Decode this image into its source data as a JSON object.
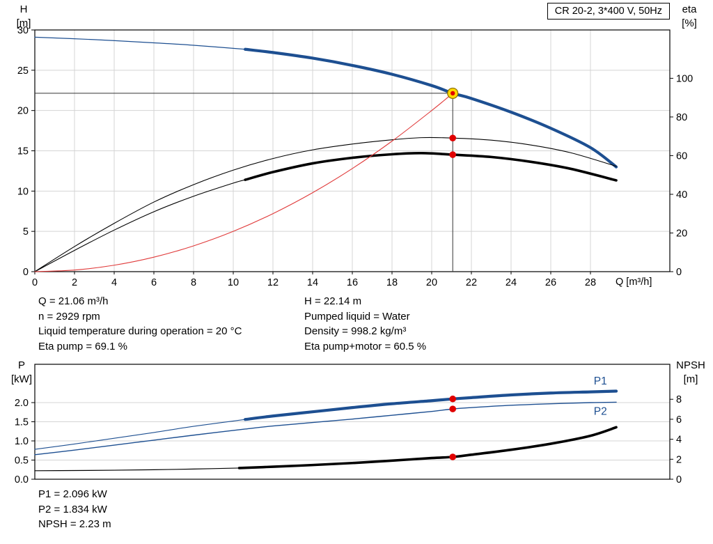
{
  "title_box": {
    "label": "CR 20-2, 3*400 V, 50Hz"
  },
  "axes_labels": {
    "head_1": "H",
    "head_2": "[m]",
    "eta_1": "eta",
    "eta_2": "[%]",
    "flow_unit": "Q [m³/h]",
    "power_1": "P",
    "power_2": "[kW]",
    "npsh_1": "NPSH",
    "npsh_2": "[m]"
  },
  "operating_point_info": {
    "left": [
      "Q = 21.06 m³/h",
      "n = 2929 rpm",
      "Liquid temperature during operation = 20 °C",
      "Eta pump = 69.1 %"
    ],
    "right": [
      "H = 22.14 m",
      "Pumped liquid = Water",
      "Density = 998.2 kg/m³",
      "Eta pump+motor = 60.5 %"
    ]
  },
  "power_info": [
    "P1 = 2.096 kW",
    "P2 = 1.834 kW",
    "NPSH = 2.23 m"
  ],
  "colors": {
    "curve_blue": "#1d4f91",
    "curve_black": "#000000",
    "system_red": "#e03a3a",
    "marker_red": "#e00000",
    "marker_yellow": "#ffd800",
    "grid": "#d4d4d4"
  },
  "chart_data": [
    {
      "type": "line",
      "title": "CR 20-2, 3*400 V, 50Hz",
      "xlabel": "Q [m³/h]",
      "ylabel": "H [m]",
      "y2label": "eta [%]",
      "xlim": [
        0,
        32
      ],
      "ylim": [
        0,
        30
      ],
      "y2lim": [
        0,
        125
      ],
      "grid": true,
      "xticks": [
        0,
        2,
        4,
        6,
        8,
        10,
        12,
        14,
        16,
        18,
        20,
        22,
        24,
        26,
        28
      ],
      "xtick_labels": [
        "0",
        "2",
        "4",
        "6",
        "8",
        "10",
        "12",
        "14",
        "16",
        "18",
        "20",
        "22",
        "24",
        "26",
        "28"
      ],
      "yticks": [
        0,
        5,
        10,
        15,
        20,
        25,
        30
      ],
      "ytick_labels": [
        "0",
        "5",
        "10",
        "15",
        "20",
        "25",
        "30"
      ],
      "y2ticks": [
        0,
        20,
        40,
        60,
        80,
        100
      ],
      "y2tick_labels": [
        "0",
        "20",
        "40",
        "60",
        "80",
        "100"
      ],
      "series": [
        {
          "name": "head-curve-lead",
          "axis": "y",
          "color": "#1d4f91",
          "width": 1.2,
          "points": [
            [
              0,
              29.1
            ],
            [
              3,
              28.8
            ],
            [
              6,
              28.4
            ],
            [
              8,
              28.1
            ],
            [
              10.6,
              27.6
            ]
          ]
        },
        {
          "name": "head-curve",
          "axis": "y",
          "color": "#1d4f91",
          "width": 4.2,
          "points": [
            [
              10.6,
              27.6
            ],
            [
              12,
              27.2
            ],
            [
              14,
              26.5
            ],
            [
              16,
              25.6
            ],
            [
              18,
              24.5
            ],
            [
              20,
              23.1
            ],
            [
              21.06,
              22.14
            ],
            [
              22,
              21.5
            ],
            [
              24,
              19.8
            ],
            [
              26,
              17.8
            ],
            [
              28,
              15.4
            ],
            [
              29.3,
              13.0
            ]
          ]
        },
        {
          "name": "eta-pump-curve",
          "axis": "y2",
          "color": "#000000",
          "width": 1.1,
          "points": [
            [
              0,
              0
            ],
            [
              2,
              13
            ],
            [
              4,
              25
            ],
            [
              6,
              36
            ],
            [
              8,
              45
            ],
            [
              10,
              52.5
            ],
            [
              12,
              58.5
            ],
            [
              14,
              63
            ],
            [
              16,
              66
            ],
            [
              18,
              68.2
            ],
            [
              19.5,
              69.3
            ],
            [
              21.06,
              69.1
            ],
            [
              23,
              68
            ],
            [
              25,
              65.5
            ],
            [
              27,
              61.5
            ],
            [
              29.3,
              54.5
            ]
          ]
        },
        {
          "name": "eta-total-lead",
          "axis": "y2",
          "color": "#000000",
          "width": 1.1,
          "points": [
            [
              0,
              0
            ],
            [
              2,
              11
            ],
            [
              4,
              21.5
            ],
            [
              6,
              31
            ],
            [
              8,
              39
            ],
            [
              10,
              45.8
            ],
            [
              10.6,
              47.5
            ]
          ]
        },
        {
          "name": "eta-total-curve",
          "axis": "y2",
          "color": "#000000",
          "width": 3.6,
          "points": [
            [
              10.6,
              47.5
            ],
            [
              12,
              51.5
            ],
            [
              14,
              56
            ],
            [
              16,
              58.9
            ],
            [
              18,
              60.7
            ],
            [
              19.5,
              61.3
            ],
            [
              21.06,
              60.5
            ],
            [
              23,
              59.3
            ],
            [
              25,
              56.8
            ],
            [
              27,
              53.2
            ],
            [
              29.3,
              47.2
            ]
          ]
        },
        {
          "name": "system-curve",
          "axis": "y",
          "color": "#e03a3a",
          "width": 1.1,
          "points": [
            [
              0,
              0
            ],
            [
              2,
              0.2
            ],
            [
              4,
              0.8
            ],
            [
              6,
              1.8
            ],
            [
              8,
              3.2
            ],
            [
              10,
              5.0
            ],
            [
              12,
              7.2
            ],
            [
              14,
              9.8
            ],
            [
              16,
              12.8
            ],
            [
              18,
              16.2
            ],
            [
              20,
              20.0
            ],
            [
              21.06,
              22.14
            ]
          ]
        }
      ],
      "guides": [
        {
          "type": "v",
          "x": 21.06,
          "y1": 0,
          "y2": 22.14
        },
        {
          "type": "h",
          "y": 22.14,
          "x1": 0,
          "x2": 21.06
        }
      ],
      "markers": [
        {
          "x": 21.06,
          "y": 69.1,
          "axis": "y2",
          "style": "red"
        },
        {
          "x": 21.06,
          "y": 60.5,
          "axis": "y2",
          "style": "red"
        },
        {
          "x": 21.06,
          "y": 22.14,
          "axis": "y",
          "style": "duty"
        }
      ],
      "annotations": []
    },
    {
      "type": "line",
      "title": "",
      "xlabel": "",
      "ylabel": "P [kW]",
      "y2label": "NPSH [m]",
      "xlim": [
        0,
        32
      ],
      "ylim": [
        0,
        3
      ],
      "y2lim": [
        0,
        11.5
      ],
      "grid": true,
      "xticks": [],
      "xtick_labels": [],
      "yticks": [
        0,
        0.5,
        1.0,
        1.5,
        2.0
      ],
      "ytick_labels": [
        "0.0",
        "0.5",
        "1.0",
        "1.5",
        "2.0"
      ],
      "y2ticks": [
        0,
        2,
        4,
        6,
        8
      ],
      "y2tick_labels": [
        "0",
        "2",
        "4",
        "6",
        "8"
      ],
      "series": [
        {
          "name": "p1-curve-lead",
          "axis": "y",
          "color": "#1d4f91",
          "width": 1.1,
          "points": [
            [
              0,
              0.78
            ],
            [
              2,
              0.92
            ],
            [
              4,
              1.07
            ],
            [
              6,
              1.22
            ],
            [
              8,
              1.38
            ],
            [
              10.6,
              1.56
            ]
          ]
        },
        {
          "name": "p1-curve",
          "axis": "y",
          "color": "#1d4f91",
          "width": 4.2,
          "points": [
            [
              10.6,
              1.56
            ],
            [
              12,
              1.65
            ],
            [
              14,
              1.76
            ],
            [
              16,
              1.87
            ],
            [
              18,
              1.97
            ],
            [
              20,
              2.05
            ],
            [
              21.06,
              2.096
            ],
            [
              22,
              2.13
            ],
            [
              24,
              2.2
            ],
            [
              26,
              2.25
            ],
            [
              28,
              2.28
            ],
            [
              29.3,
              2.3
            ]
          ]
        },
        {
          "name": "p2-curve",
          "axis": "y",
          "color": "#1d4f91",
          "width": 1.4,
          "points": [
            [
              0,
              0.64
            ],
            [
              2,
              0.76
            ],
            [
              4,
              0.89
            ],
            [
              6,
              1.02
            ],
            [
              8,
              1.15
            ],
            [
              10.6,
              1.31
            ],
            [
              12,
              1.39
            ],
            [
              14,
              1.48
            ],
            [
              16,
              1.57
            ],
            [
              18,
              1.67
            ],
            [
              20,
              1.77
            ],
            [
              21.06,
              1.834
            ],
            [
              22,
              1.87
            ],
            [
              24,
              1.93
            ],
            [
              26,
              1.97
            ],
            [
              28,
              2.0
            ],
            [
              29.3,
              2.01
            ]
          ]
        },
        {
          "name": "npsh-curve-lead",
          "axis": "y2",
          "color": "#000000",
          "width": 1.2,
          "points": [
            [
              0,
              0.85
            ],
            [
              2,
              0.87
            ],
            [
              4,
              0.9
            ],
            [
              6,
              0.95
            ],
            [
              8,
              1.02
            ],
            [
              10.3,
              1.12
            ]
          ]
        },
        {
          "name": "npsh-curve",
          "axis": "y2",
          "color": "#000000",
          "width": 3.6,
          "points": [
            [
              10.3,
              1.12
            ],
            [
              12,
              1.25
            ],
            [
              14,
              1.42
            ],
            [
              16,
              1.62
            ],
            [
              18,
              1.86
            ],
            [
              20,
              2.12
            ],
            [
              21.06,
              2.23
            ],
            [
              22,
              2.45
            ],
            [
              24,
              2.95
            ],
            [
              26,
              3.55
            ],
            [
              28,
              4.35
            ],
            [
              29.3,
              5.2
            ]
          ]
        }
      ],
      "guides": [],
      "markers": [
        {
          "x": 21.06,
          "y": 2.096,
          "axis": "y",
          "style": "red"
        },
        {
          "x": 21.06,
          "y": 1.834,
          "axis": "y",
          "style": "red"
        },
        {
          "x": 21.06,
          "y": 2.23,
          "axis": "y2",
          "style": "red"
        }
      ],
      "annotations": [
        {
          "x": 28.5,
          "y": 2.56,
          "axis": "y",
          "text": "P1",
          "color": "#1d4f91"
        },
        {
          "x": 28.5,
          "y": 1.77,
          "axis": "y",
          "text": "P2",
          "color": "#1d4f91"
        }
      ]
    }
  ]
}
